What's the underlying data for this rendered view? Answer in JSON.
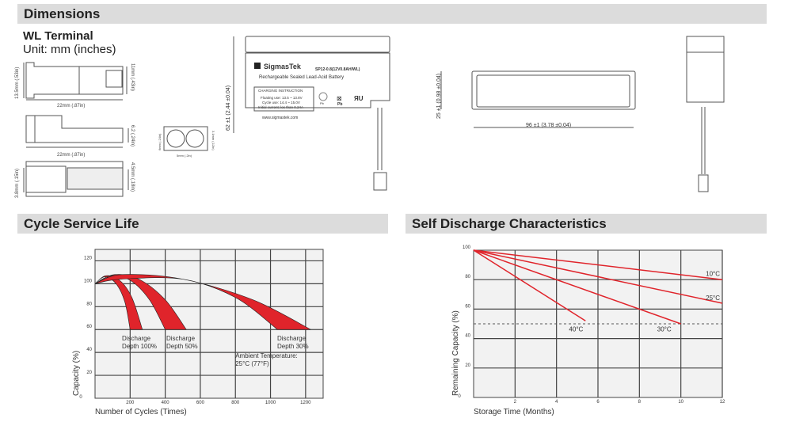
{
  "sections": {
    "dimensions": "Dimensions",
    "cycle": "Cycle Service Life",
    "self": "Self Discharge Characteristics"
  },
  "terminal": {
    "title": "WL Terminal",
    "unit": "Unit: mm (inches)",
    "d1": "13.5mm (.53in)",
    "d2": "11mm (.43in)",
    "d3": "22mm (.87in)",
    "d4": "6.2 (.24in)",
    "d5": "22mm (.87in)",
    "d6": "3.8mm (.15in)",
    "d7": "4.5mm (.18in)",
    "d8": "6mm (.24in)",
    "d9": "3.1mm (.12in)",
    "d10": "5mm (.2in)"
  },
  "battery": {
    "brand": "SigmasTek",
    "model": "SP12-0.8(12V0.8AH/WL)",
    "type": "Rechargeable Sealed Lead-Acid Battery",
    "ci_title": "CHARGING INSTRUCTION",
    "ci1": "Floating use: 13.5 ~ 13.8V",
    "ci2": "Cycle use: 14.4 ~ 15.0V",
    "ci3": "Initial current: les than 0.24A",
    "url": "www.sigmastek.com",
    "pb1": "Pb",
    "pb2": "Pb",
    "height": "62 ±1 (2.44 ±0.04)",
    "width": "96 ±1 (3.78 ±0.04)",
    "depth": "25 ±1 (0.98 ±0.04)"
  },
  "chart_data": [
    {
      "type": "area",
      "xlabel": "Number of Cycles (Times)",
      "ylabel": "Capacity (%)",
      "xlim": [
        0,
        1300
      ],
      "ylim": [
        0,
        130
      ],
      "xticks": [
        0,
        200,
        400,
        600,
        800,
        1000,
        1200
      ],
      "yticks": [
        0,
        20,
        40,
        60,
        80,
        100,
        120
      ],
      "grid": true,
      "color": "#e0242b",
      "series": [
        {
          "name": "Discharge Depth 100%",
          "label1": "Discharge",
          "label2": "Depth 100%",
          "outer": [
            [
              0,
              100
            ],
            [
              60,
              107
            ],
            [
              140,
              103
            ],
            [
              210,
              88
            ],
            [
              270,
              60
            ]
          ],
          "inner": [
            [
              0,
              100
            ],
            [
              55,
              106
            ],
            [
              120,
              100
            ],
            [
              170,
              84
            ],
            [
              200,
              60
            ]
          ]
        },
        {
          "name": "Discharge Depth 50%",
          "label1": "Discharge",
          "label2": "Depth 50%",
          "outer": [
            [
              0,
              100
            ],
            [
              110,
              108
            ],
            [
              250,
              104
            ],
            [
              400,
              86
            ],
            [
              520,
              60
            ]
          ],
          "inner": [
            [
              0,
              100
            ],
            [
              90,
              107
            ],
            [
              200,
              103
            ],
            [
              310,
              86
            ],
            [
              400,
              60
            ]
          ]
        },
        {
          "name": "Discharge Depth 30%",
          "label1": "Discharge",
          "label2": "Depth 30%",
          "outer": [
            [
              0,
              100
            ],
            [
              150,
              108
            ],
            [
              500,
              104
            ],
            [
              900,
              86
            ],
            [
              1230,
              60
            ]
          ],
          "inner": [
            [
              0,
              100
            ],
            [
              150,
              104
            ],
            [
              500,
              104
            ],
            [
              800,
              88
            ],
            [
              1040,
              60
            ]
          ]
        }
      ],
      "annotation1": "Ambient Temperature:",
      "annotation2": "25°C (77°F)"
    },
    {
      "type": "line",
      "xlabel": "Storage Time (Months)",
      "ylabel": "Remaining Capacity (%)",
      "xlim": [
        0,
        12
      ],
      "ylim": [
        0,
        100
      ],
      "xticks": [
        0,
        2,
        4,
        6,
        8,
        10,
        12
      ],
      "yticks": [
        0,
        20,
        40,
        60,
        80,
        100
      ],
      "grid": true,
      "color": "#e0242b",
      "reference_line": 50,
      "series": [
        {
          "name": "10°C",
          "x": [
            0,
            12
          ],
          "y": [
            100,
            80
          ]
        },
        {
          "name": "25°C",
          "x": [
            0,
            12
          ],
          "y": [
            100,
            64
          ]
        },
        {
          "name": "30°C",
          "x": [
            0,
            10
          ],
          "y": [
            100,
            50
          ]
        },
        {
          "name": "40°C",
          "x": [
            0,
            5.4
          ],
          "y": [
            100,
            52
          ]
        }
      ]
    }
  ]
}
